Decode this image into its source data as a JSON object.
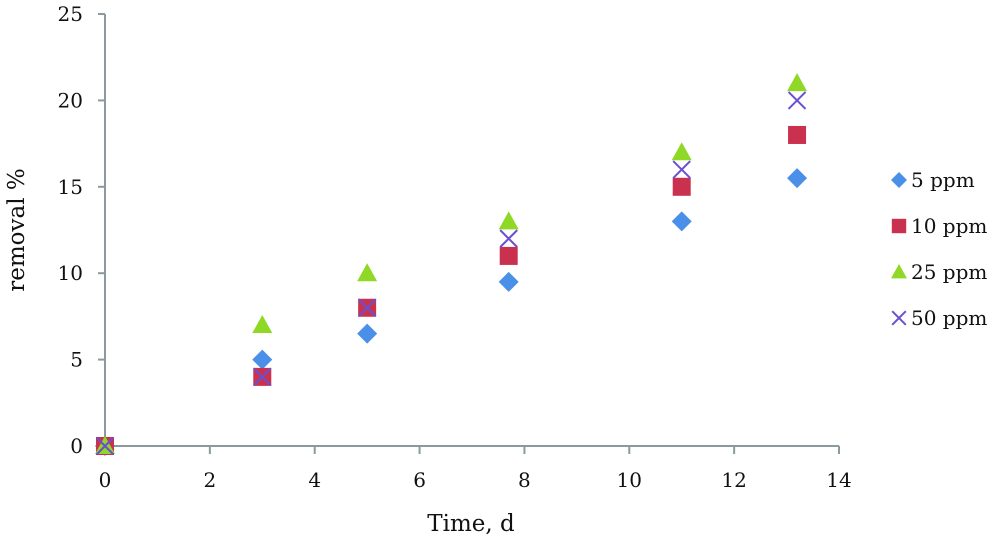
{
  "chart_data": {
    "type": "scatter",
    "title": "",
    "xlabel": "Time, d",
    "ylabel": "removal %",
    "xlim": [
      0,
      14
    ],
    "ylim": [
      0,
      25
    ],
    "xticks": [
      0,
      2,
      4,
      6,
      8,
      10,
      12,
      14
    ],
    "yticks": [
      0,
      5,
      10,
      15,
      20,
      25
    ],
    "grid": false,
    "legend_position": "right",
    "x": [
      0,
      3,
      5,
      7.7,
      11,
      13.2
    ],
    "series": [
      {
        "name": "5 ppm",
        "marker": "diamond",
        "color": "#4a8fe8",
        "values": [
          0,
          5,
          6.5,
          9.5,
          13,
          15.5
        ]
      },
      {
        "name": "10 ppm",
        "marker": "square",
        "color": "#c9314f",
        "values": [
          0,
          4,
          8,
          11,
          15,
          18
        ]
      },
      {
        "name": "25 ppm",
        "marker": "triangle",
        "color": "#8fd926",
        "values": [
          0,
          7,
          10,
          13,
          17,
          21
        ]
      },
      {
        "name": "50 ppm",
        "marker": "x",
        "color": "#6a4fd0",
        "values": [
          0,
          4,
          8,
          12,
          16,
          20
        ]
      }
    ]
  },
  "axis_color": "#8a9a9e"
}
